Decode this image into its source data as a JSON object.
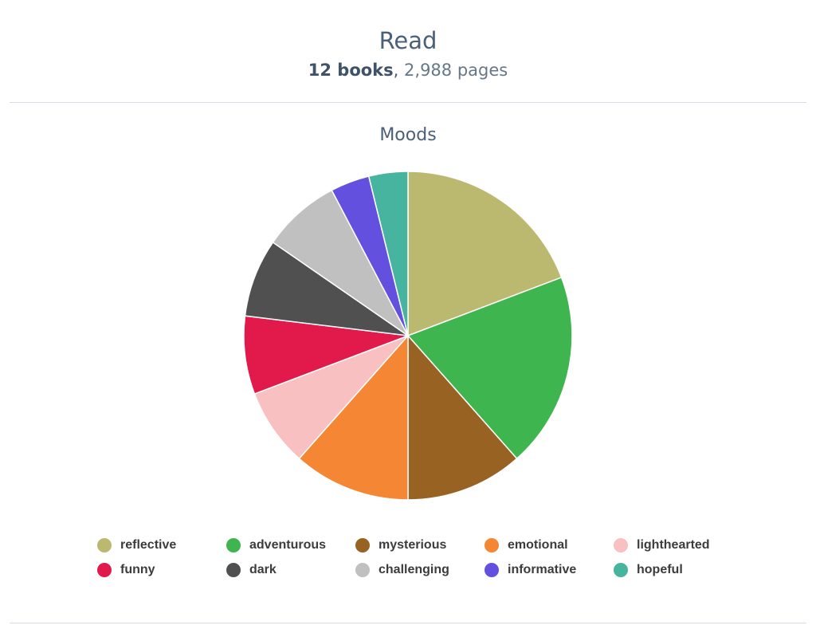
{
  "header": {
    "title": "Read",
    "books": "12 books",
    "separator": ",",
    "pages": "2,988 pages"
  },
  "chart_data": {
    "type": "pie",
    "title": "Moods",
    "legend_position": "bottom",
    "slices": [
      {
        "label": "reflective",
        "value": 20,
        "color": "#bbb96f"
      },
      {
        "label": "adventurous",
        "value": 20,
        "color": "#3eb54e"
      },
      {
        "label": "mysterious",
        "value": 12,
        "color": "#986223"
      },
      {
        "label": "emotional",
        "value": 12,
        "color": "#f48634"
      },
      {
        "label": "lighthearted",
        "value": 8,
        "color": "#f9c0c2"
      },
      {
        "label": "funny",
        "value": 8,
        "color": "#e2194b"
      },
      {
        "label": "dark",
        "value": 8,
        "color": "#505050"
      },
      {
        "label": "challenging",
        "value": 8,
        "color": "#c0c0c0"
      },
      {
        "label": "informative",
        "value": 4,
        "color": "#6450df"
      },
      {
        "label": "hopeful",
        "value": 4,
        "color": "#47b49f"
      }
    ]
  }
}
